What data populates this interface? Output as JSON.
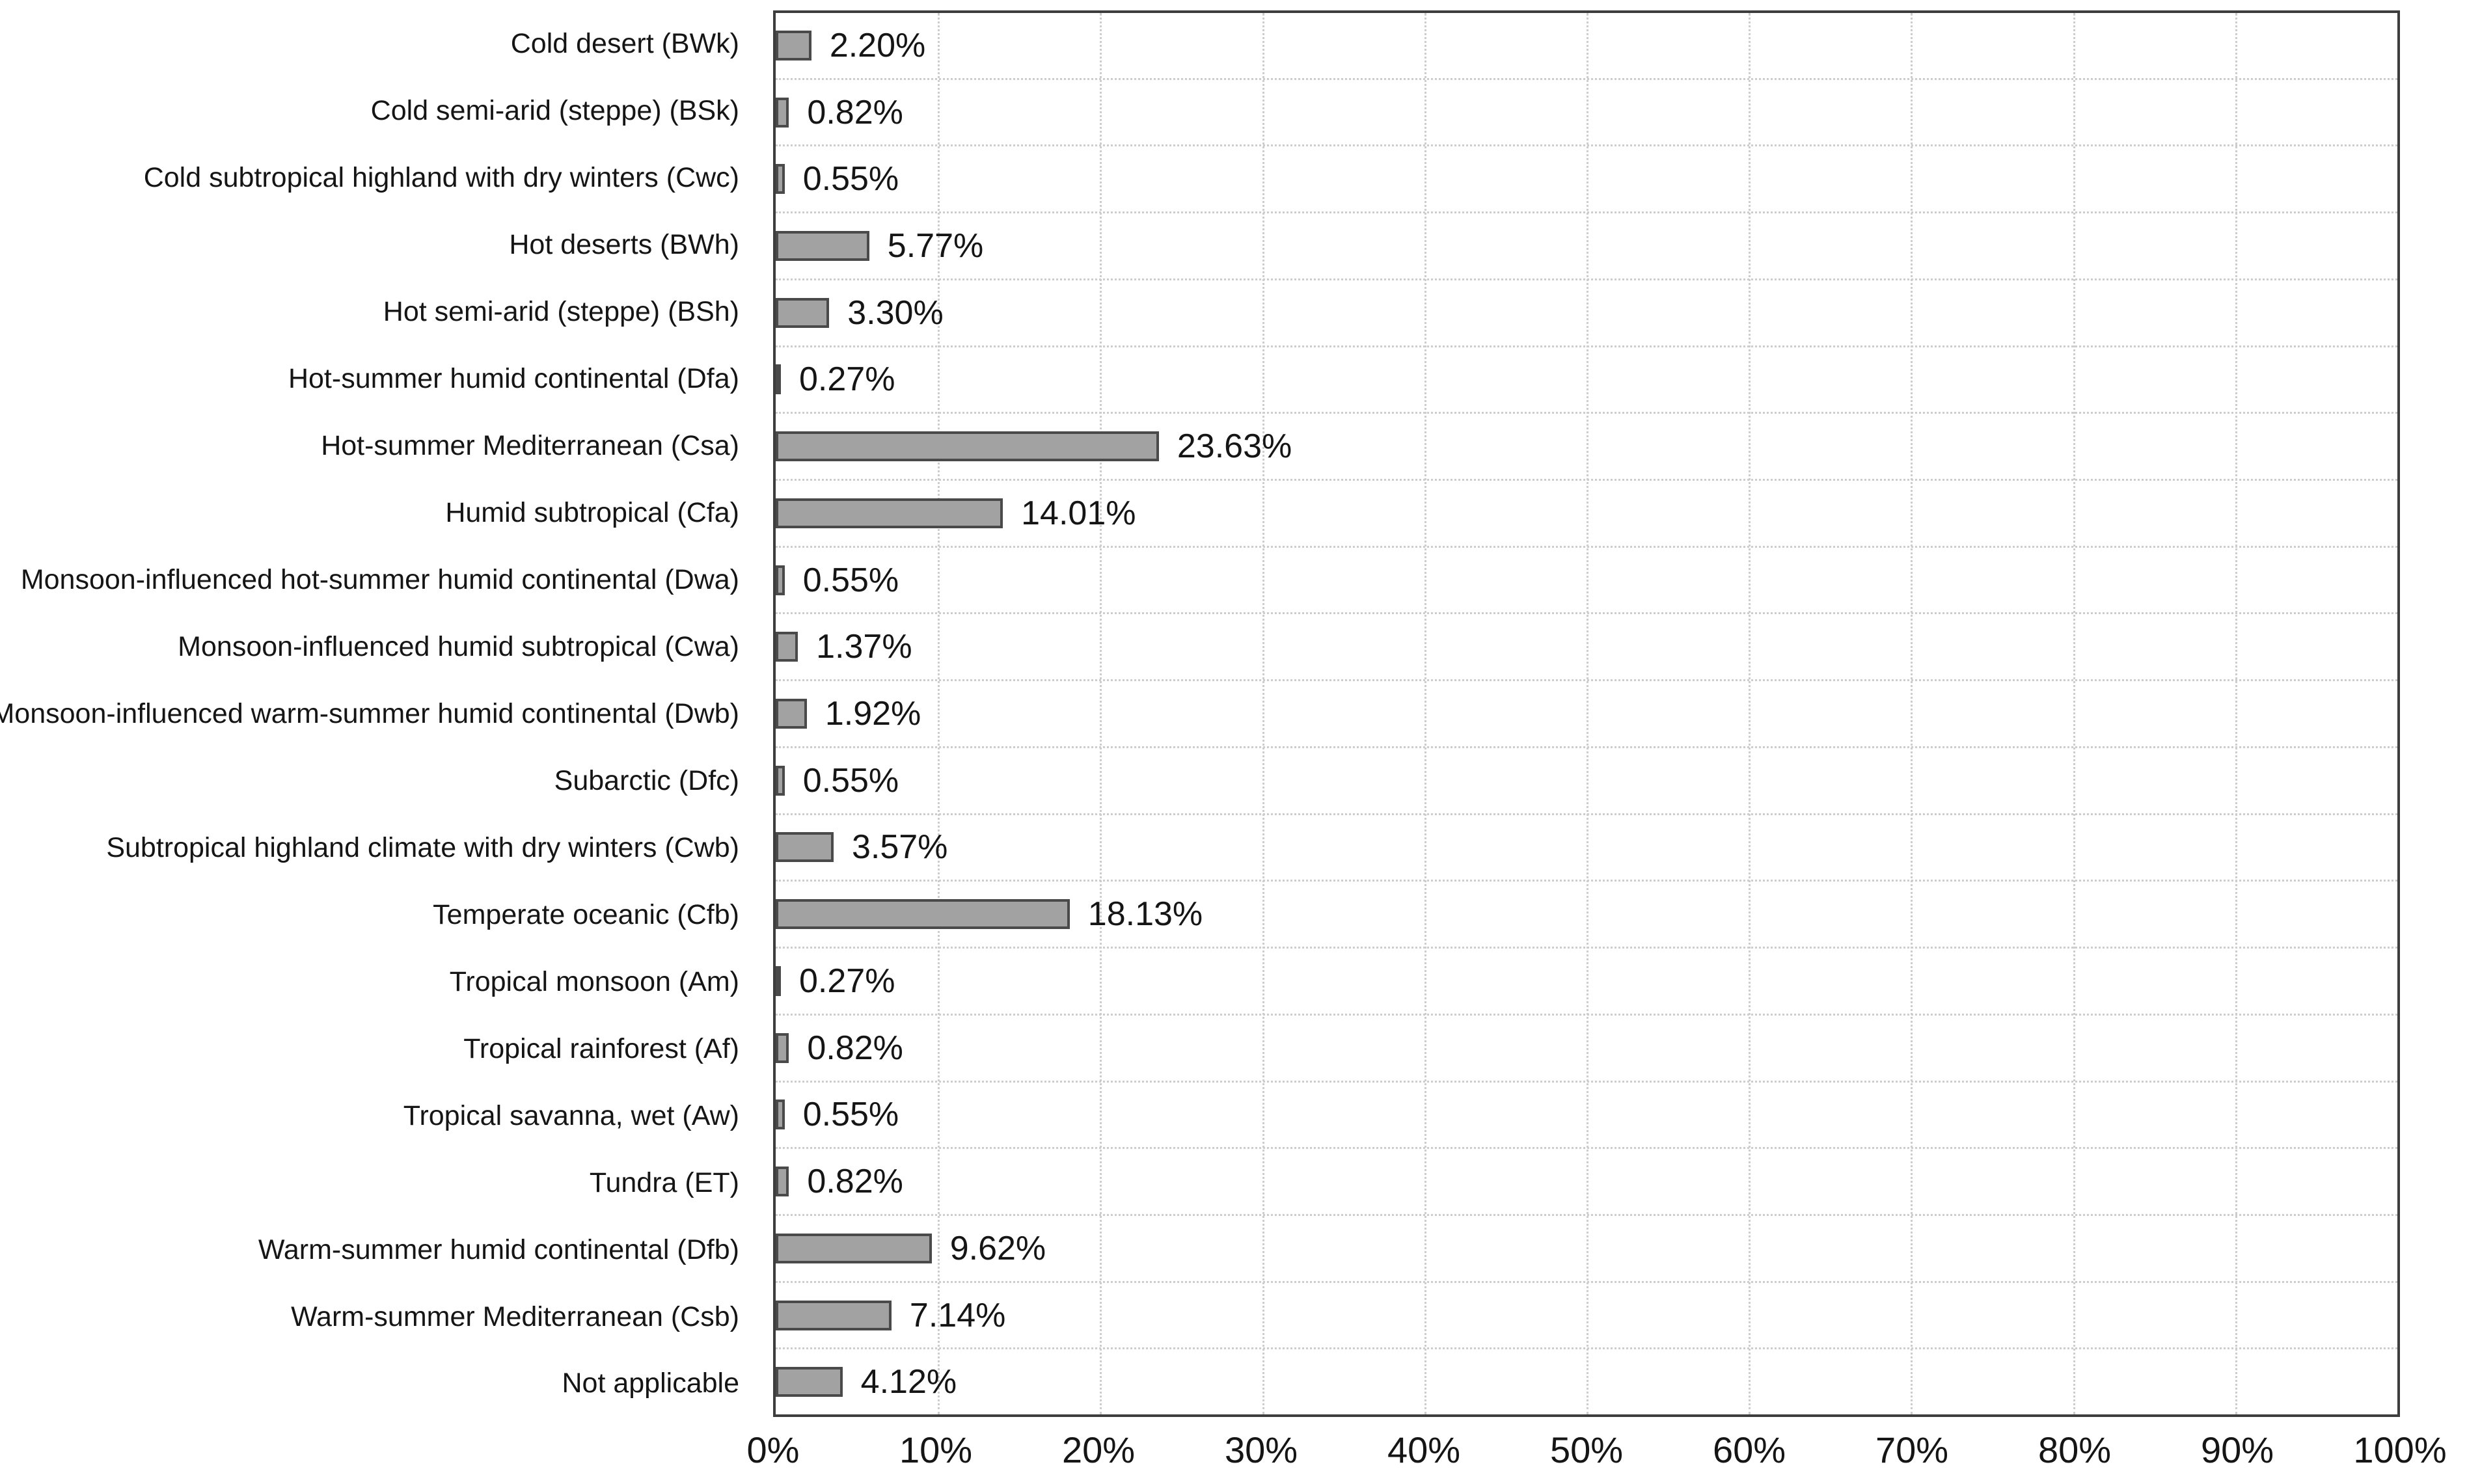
{
  "chart_data": {
    "type": "bar",
    "orientation": "horizontal",
    "categories": [
      "Cold desert (BWk)",
      "Cold semi-arid (steppe) (BSk)",
      "Cold subtropical highland with dry winters (Cwc)",
      "Hot deserts (BWh)",
      "Hot semi-arid (steppe) (BSh)",
      "Hot-summer humid continental (Dfa)",
      "Hot-summer Mediterranean (Csa)",
      "Humid subtropical (Cfa)",
      "Monsoon-influenced hot-summer humid continental (Dwa)",
      "Monsoon-influenced humid subtropical (Cwa)",
      "Monsoon-influenced warm-summer humid continental (Dwb)",
      "Subarctic (Dfc)",
      "Subtropical highland climate with dry winters (Cwb)",
      "Temperate oceanic (Cfb)",
      "Tropical monsoon (Am)",
      "Tropical rainforest (Af)",
      "Tropical savanna, wet (Aw)",
      "Tundra (ET)",
      "Warm-summer humid continental (Dfb)",
      "Warm-summer Mediterranean (Csb)",
      "Not applicable"
    ],
    "values": [
      2.2,
      0.82,
      0.55,
      5.77,
      3.3,
      0.27,
      23.63,
      14.01,
      0.55,
      1.37,
      1.92,
      0.55,
      3.57,
      18.13,
      0.27,
      0.82,
      0.55,
      0.82,
      9.62,
      7.14,
      4.12
    ],
    "value_labels": [
      "2.20%",
      "0.82%",
      "0.55%",
      "5.77%",
      "3.30%",
      "0.27%",
      "23.63%",
      "14.01%",
      "0.55%",
      "1.37%",
      "1.92%",
      "0.55%",
      "3.57%",
      "18.13%",
      "0.27%",
      "0.82%",
      "0.55%",
      "0.82%",
      "9.62%",
      "7.14%",
      "4.12%"
    ],
    "x_tick_labels": [
      "0%",
      "10%",
      "20%",
      "30%",
      "40%",
      "50%",
      "60%",
      "70%",
      "80%",
      "90%",
      "100%"
    ],
    "xlim": [
      0,
      100
    ],
    "grid": true,
    "legend": false,
    "colors": {
      "bar_fill": "#a2a2a2",
      "bar_border": "#4a4a4a",
      "plot_border": "#3d3d3d",
      "gridline": "#cdcdcd",
      "text": "#151515",
      "background": "#ffffff"
    }
  }
}
